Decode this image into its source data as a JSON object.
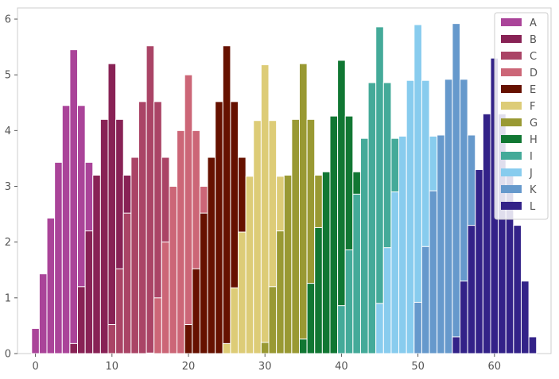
{
  "chart_data": {
    "type": "bar",
    "title": "",
    "xlabel": "",
    "ylabel": "",
    "xlim": [
      -2.35,
      67.4
    ],
    "ylim": [
      0,
      6.2
    ],
    "xticks": [
      0,
      10,
      20,
      30,
      40,
      50,
      60
    ],
    "yticks": [
      0,
      1,
      2,
      3,
      4,
      5,
      6
    ],
    "grid": false,
    "stacked": false,
    "bar_width": 1.0,
    "legend_position": "top-right",
    "series": [
      {
        "name": "A",
        "color": "#aa4499",
        "x": [
          0,
          1,
          2,
          3,
          4,
          5,
          6,
          7
        ],
        "values": [
          0.45,
          1.43,
          2.43,
          3.43,
          4.45,
          5.45,
          4.45,
          3.43
        ]
      },
      {
        "name": "B",
        "color": "#882255",
        "x": [
          5,
          6,
          7,
          8,
          9,
          10,
          11,
          12
        ],
        "values": [
          0.18,
          1.2,
          2.2,
          3.2,
          4.2,
          5.2,
          4.2,
          3.2
        ]
      },
      {
        "name": "C",
        "color": "#aa4466",
        "x": [
          10,
          11,
          12,
          13,
          14,
          15,
          16,
          17
        ],
        "values": [
          0.52,
          1.52,
          2.52,
          3.52,
          4.52,
          5.52,
          4.52,
          3.52
        ]
      },
      {
        "name": "D",
        "color": "#cc6677",
        "x": [
          15,
          16,
          17,
          18,
          19,
          20,
          21,
          22
        ],
        "values": [
          0.01,
          1.0,
          2.0,
          3.0,
          4.0,
          5.0,
          4.0,
          3.0
        ]
      },
      {
        "name": "E",
        "color": "#661100",
        "x": [
          20,
          21,
          22,
          23,
          24,
          25,
          26,
          27
        ],
        "values": [
          0.52,
          1.52,
          2.52,
          3.52,
          4.52,
          5.52,
          4.52,
          3.52
        ]
      },
      {
        "name": "F",
        "color": "#ddcc77",
        "x": [
          25,
          26,
          27,
          28,
          29,
          30,
          31,
          32
        ],
        "values": [
          0.18,
          1.18,
          2.18,
          3.18,
          4.18,
          5.18,
          4.18,
          3.18
        ]
      },
      {
        "name": "G",
        "color": "#999933",
        "x": [
          30,
          31,
          32,
          33,
          34,
          35,
          36,
          37
        ],
        "values": [
          0.2,
          1.2,
          2.2,
          3.2,
          4.2,
          5.2,
          4.2,
          3.2
        ]
      },
      {
        "name": "H",
        "color": "#117733",
        "x": [
          35,
          36,
          37,
          38,
          39,
          40,
          41,
          42
        ],
        "values": [
          0.26,
          1.26,
          2.26,
          3.26,
          4.26,
          5.26,
          4.26,
          3.26
        ]
      },
      {
        "name": "I",
        "color": "#44aa99",
        "x": [
          40,
          41,
          42,
          43,
          44,
          45,
          46,
          47
        ],
        "values": [
          0.86,
          1.86,
          2.86,
          3.86,
          4.86,
          5.86,
          4.86,
          3.86
        ]
      },
      {
        "name": "J",
        "color": "#88ccee",
        "x": [
          45,
          46,
          47,
          48,
          49,
          50,
          51,
          52
        ],
        "values": [
          0.9,
          1.9,
          2.9,
          3.9,
          4.9,
          5.9,
          4.9,
          3.9
        ]
      },
      {
        "name": "K",
        "color": "#6699cc",
        "x": [
          50,
          51,
          52,
          53,
          54,
          55,
          56,
          57
        ],
        "values": [
          0.92,
          1.92,
          2.92,
          3.92,
          4.92,
          5.92,
          4.92,
          3.92
        ]
      },
      {
        "name": "L",
        "color": "#332288",
        "x": [
          55,
          56,
          57,
          58,
          59,
          60,
          61,
          62,
          63,
          64,
          65
        ],
        "values": [
          0.3,
          1.3,
          2.3,
          3.3,
          4.3,
          5.3,
          4.3,
          3.3,
          2.3,
          1.3,
          0.3
        ]
      }
    ]
  }
}
